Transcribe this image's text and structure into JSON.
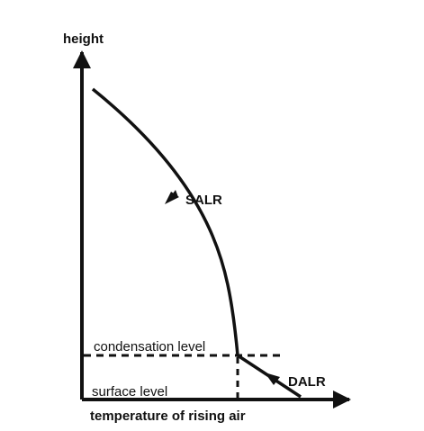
{
  "labels": {
    "y_axis": "height",
    "x_axis": "temperature of rising air",
    "condensation": "condensation level",
    "surface": "surface level",
    "salr": "SALR",
    "dalr": "DALR"
  },
  "colors": {
    "ink": "#111111",
    "background": "#ffffff"
  }
}
